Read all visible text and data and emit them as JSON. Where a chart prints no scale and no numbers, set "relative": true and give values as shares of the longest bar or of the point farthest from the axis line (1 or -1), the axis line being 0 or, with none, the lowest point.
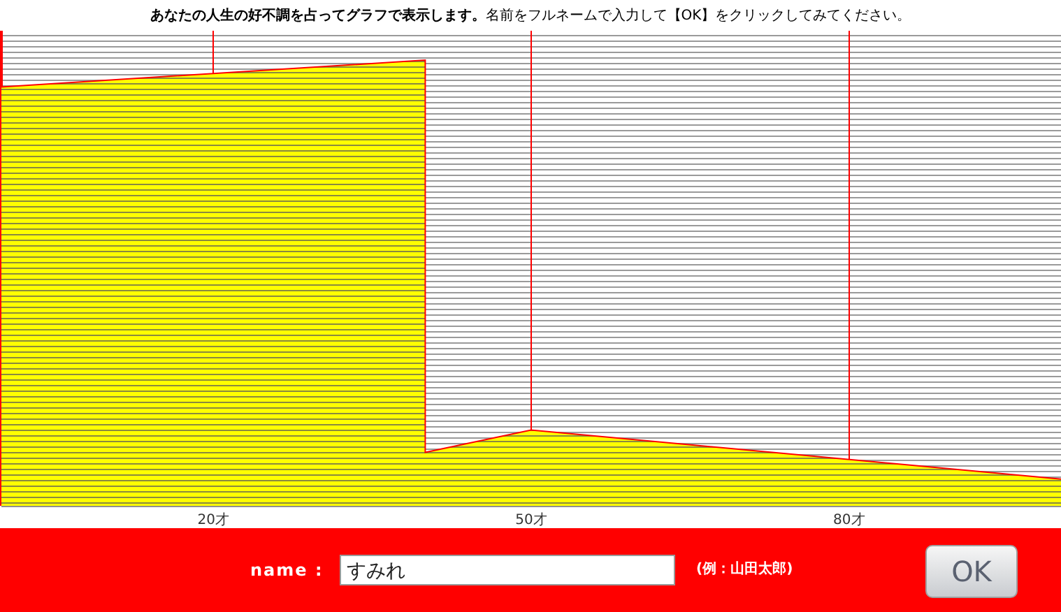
{
  "chart_data": {
    "type": "area",
    "title": "あなたの人生の好不調を占ってグラフで表示します。",
    "subtitle": "名前をフルネームで入力して【OK】をクリックしてみてください。",
    "x": [
      0,
      40,
      40,
      50,
      100
    ],
    "series": [
      {
        "color": "#ffff00",
        "values": [
          0.94,
          1,
          0.12,
          0.17,
          0.06
        ]
      }
    ],
    "relative": true,
    "xlim": [
      0,
      100
    ],
    "xticks": [
      {
        "value": 20,
        "label": "20才"
      },
      {
        "value": 50,
        "label": "50才"
      },
      {
        "value": 80,
        "label": "80才"
      }
    ],
    "grid": true,
    "annotations": [
      "name :",
      "すみれ",
      "(例：山田太郎)",
      "OK"
    ]
  }
}
